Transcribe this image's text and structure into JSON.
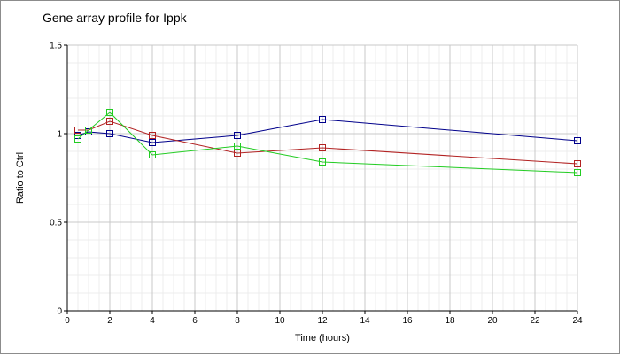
{
  "chart_data": {
    "type": "line",
    "title": "Gene array profile for Ippk",
    "xlabel": "Time (hours)",
    "ylabel": "Ratio to Ctrl",
    "xlim": [
      0,
      24
    ],
    "ylim": [
      0,
      1.5
    ],
    "x_ticks": [
      0,
      2,
      4,
      6,
      8,
      10,
      12,
      14,
      16,
      18,
      20,
      22,
      24
    ],
    "y_ticks": [
      0,
      0.5,
      1,
      1.5
    ],
    "y_tick_labels": [
      "0",
      "0.5",
      "1",
      "1.5"
    ],
    "grid": true,
    "marker": "square",
    "series": [
      {
        "color": "#00008b",
        "x": [
          0.5,
          1,
          2,
          4,
          8,
          12,
          24
        ],
        "y": [
          0.99,
          1.01,
          1.0,
          0.95,
          0.99,
          1.08,
          0.96
        ]
      },
      {
        "color": "#b22222",
        "x": [
          0.5,
          1,
          2,
          4,
          8,
          12,
          24
        ],
        "y": [
          1.02,
          1.02,
          1.07,
          0.99,
          0.89,
          0.92,
          0.83
        ]
      },
      {
        "color": "#22cc22",
        "x": [
          0.5,
          1,
          2,
          4,
          8,
          12,
          24
        ],
        "y": [
          0.97,
          1.02,
          1.12,
          0.88,
          0.93,
          0.84,
          0.78
        ]
      }
    ]
  }
}
